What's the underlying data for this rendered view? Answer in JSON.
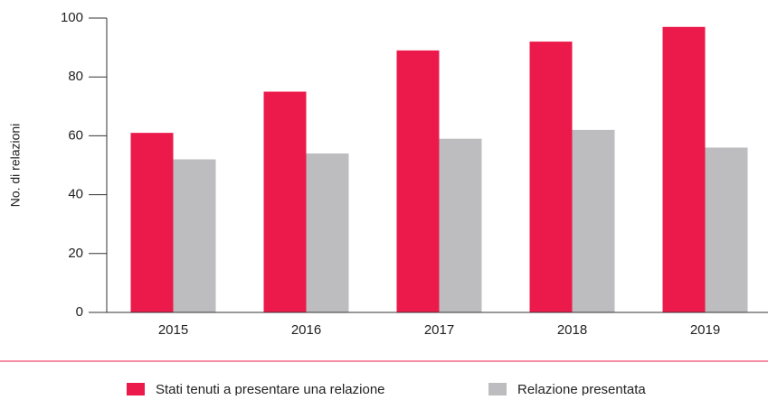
{
  "chart_data": {
    "type": "bar",
    "ylabel": "No. di relazioni",
    "categories": [
      "2015",
      "2016",
      "2017",
      "2018",
      "2019"
    ],
    "series": [
      {
        "name": "Stati tenuti a presentare una relazione",
        "color": "#ec1a4b",
        "values": [
          61,
          75,
          89,
          92,
          97
        ]
      },
      {
        "name": "Relazione presentata",
        "color": "#bdbdc0",
        "values": [
          52,
          54,
          59,
          62,
          56
        ]
      }
    ],
    "ylim": [
      0,
      100
    ],
    "yticks": [
      0,
      20,
      40,
      60,
      80,
      100
    ],
    "grid": false,
    "legend": "bottom"
  }
}
